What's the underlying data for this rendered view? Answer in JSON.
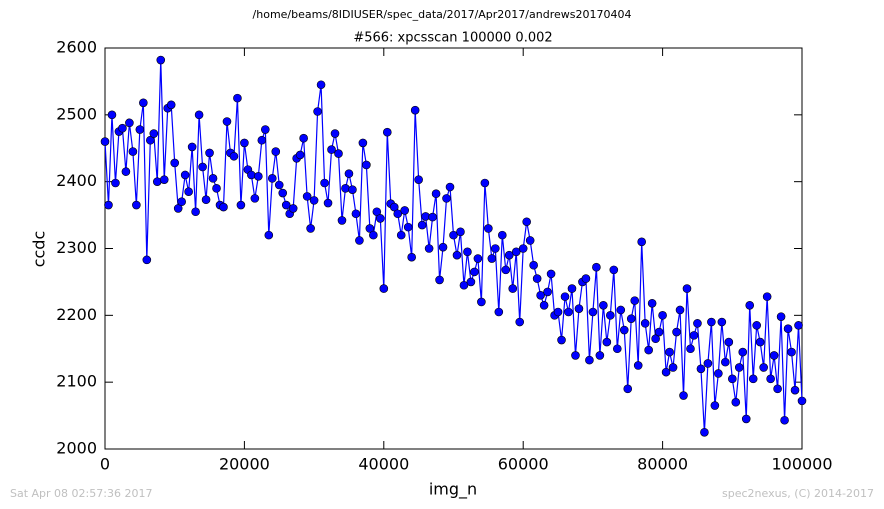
{
  "chart_data": {
    "type": "line",
    "header": "/home/beams/8IDIUSER/spec_data/2017/Apr2017/andrews20170404",
    "title": "#566: xpcsscan 100000 0.002",
    "xlabel": "img_n",
    "ylabel": "ccdc",
    "footer_left": "Sat Apr 08 02:57:36 2017",
    "footer_right": "spec2nexus, (C) 2014-2017",
    "xlim": [
      0,
      100000
    ],
    "ylim": [
      2000,
      2600
    ],
    "xticks": [
      0,
      20000,
      40000,
      60000,
      80000,
      100000
    ],
    "yticks": [
      2000,
      2100,
      2200,
      2300,
      2400,
      2500,
      2600
    ],
    "grid": false,
    "x": [
      0,
      500,
      1000,
      1500,
      2000,
      2500,
      3000,
      3500,
      4000,
      4500,
      5000,
      5500,
      6000,
      6500,
      7000,
      7500,
      8000,
      8500,
      9000,
      9500,
      10000,
      10500,
      11000,
      11500,
      12000,
      12500,
      13000,
      13500,
      14000,
      14500,
      15000,
      15500,
      16000,
      16500,
      17000,
      17500,
      18000,
      18500,
      19000,
      19500,
      20000,
      20500,
      21000,
      21500,
      22000,
      22500,
      23000,
      23500,
      24000,
      24500,
      25000,
      25500,
      26000,
      26500,
      27000,
      27500,
      28000,
      28500,
      29000,
      29500,
      30000,
      30500,
      31000,
      31500,
      32000,
      32500,
      33000,
      33500,
      34000,
      34500,
      35000,
      35500,
      36000,
      36500,
      37000,
      37500,
      38000,
      38500,
      39000,
      39500,
      40000,
      40500,
      41000,
      41500,
      42000,
      42500,
      43000,
      43500,
      44000,
      44500,
      45000,
      45500,
      46000,
      46500,
      47000,
      47500,
      48000,
      48500,
      49000,
      49500,
      50000,
      50500,
      51000,
      51500,
      52000,
      52500,
      53000,
      53500,
      54000,
      54500,
      55000,
      55500,
      56000,
      56500,
      57000,
      57500,
      58000,
      58500,
      59000,
      59500,
      60000,
      60500,
      61000,
      61500,
      62000,
      62500,
      63000,
      63500,
      64000,
      64500,
      65000,
      65500,
      66000,
      66500,
      67000,
      67500,
      68000,
      68500,
      69000,
      69500,
      70000,
      70500,
      71000,
      71500,
      72000,
      72500,
      73000,
      73500,
      74000,
      74500,
      75000,
      75500,
      76000,
      76500,
      77000,
      77500,
      78000,
      78500,
      79000,
      79500,
      80000,
      80500,
      81000,
      81500,
      82000,
      82500,
      83000,
      83500,
      84000,
      84500,
      85000,
      85500,
      86000,
      86500,
      87000,
      87500,
      88000,
      88500,
      89000,
      89500,
      90000,
      90500,
      91000,
      91500,
      92000,
      92500,
      93000,
      93500,
      94000,
      94500,
      95000,
      95500,
      96000,
      96500,
      97000,
      97500,
      98000,
      98500,
      99000,
      99500,
      100000
    ],
    "series": [
      {
        "color": "#0000ff",
        "values": [
          2460,
          2365,
          2500,
          2398,
          2475,
          2480,
          2415,
          2488,
          2445,
          2365,
          2478,
          2518,
          2283,
          2462,
          2472,
          2400,
          2582,
          2403,
          2510,
          2515,
          2428,
          2360,
          2370,
          2410,
          2385,
          2452,
          2355,
          2500,
          2422,
          2373,
          2443,
          2405,
          2390,
          2365,
          2362,
          2490,
          2443,
          2438,
          2525,
          2365,
          2458,
          2418,
          2410,
          2375,
          2408,
          2462,
          2478,
          2320,
          2405,
          2445,
          2395,
          2383,
          2365,
          2352,
          2360,
          2435,
          2440,
          2465,
          2378,
          2330,
          2372,
          2505,
          2545,
          2398,
          2368,
          2448,
          2472,
          2442,
          2342,
          2390,
          2412,
          2388,
          2352,
          2312,
          2458,
          2425,
          2330,
          2320,
          2355,
          2345,
          2240,
          2474,
          2367,
          2362,
          2352,
          2320,
          2357,
          2332,
          2287,
          2507,
          2403,
          2335,
          2348,
          2300,
          2347,
          2382,
          2253,
          2302,
          2375,
          2392,
          2320,
          2290,
          2325,
          2245,
          2295,
          2250,
          2265,
          2285,
          2220,
          2398,
          2330,
          2285,
          2300,
          2205,
          2320,
          2268,
          2290,
          2240,
          2295,
          2190,
          2300,
          2340,
          2312,
          2275,
          2255,
          2230,
          2215,
          2235,
          2262,
          2200,
          2205,
          2163,
          2228,
          2205,
          2240,
          2140,
          2210,
          2250,
          2255,
          2133,
          2205,
          2272,
          2140,
          2215,
          2160,
          2200,
          2268,
          2150,
          2208,
          2178,
          2090,
          2195,
          2222,
          2125,
          2310,
          2188,
          2148,
          2218,
          2165,
          2175,
          2200,
          2115,
          2145,
          2122,
          2175,
          2208,
          2080,
          2240,
          2150,
          2170,
          2188,
          2120,
          2025,
          2128,
          2190,
          2065,
          2113,
          2190,
          2130,
          2160,
          2105,
          2070,
          2122,
          2145,
          2045,
          2215,
          2105,
          2185,
          2160,
          2122,
          2228,
          2105,
          2140,
          2090,
          2198,
          2043,
          2180,
          2145,
          2088,
          2185,
          2072
        ]
      }
    ]
  }
}
